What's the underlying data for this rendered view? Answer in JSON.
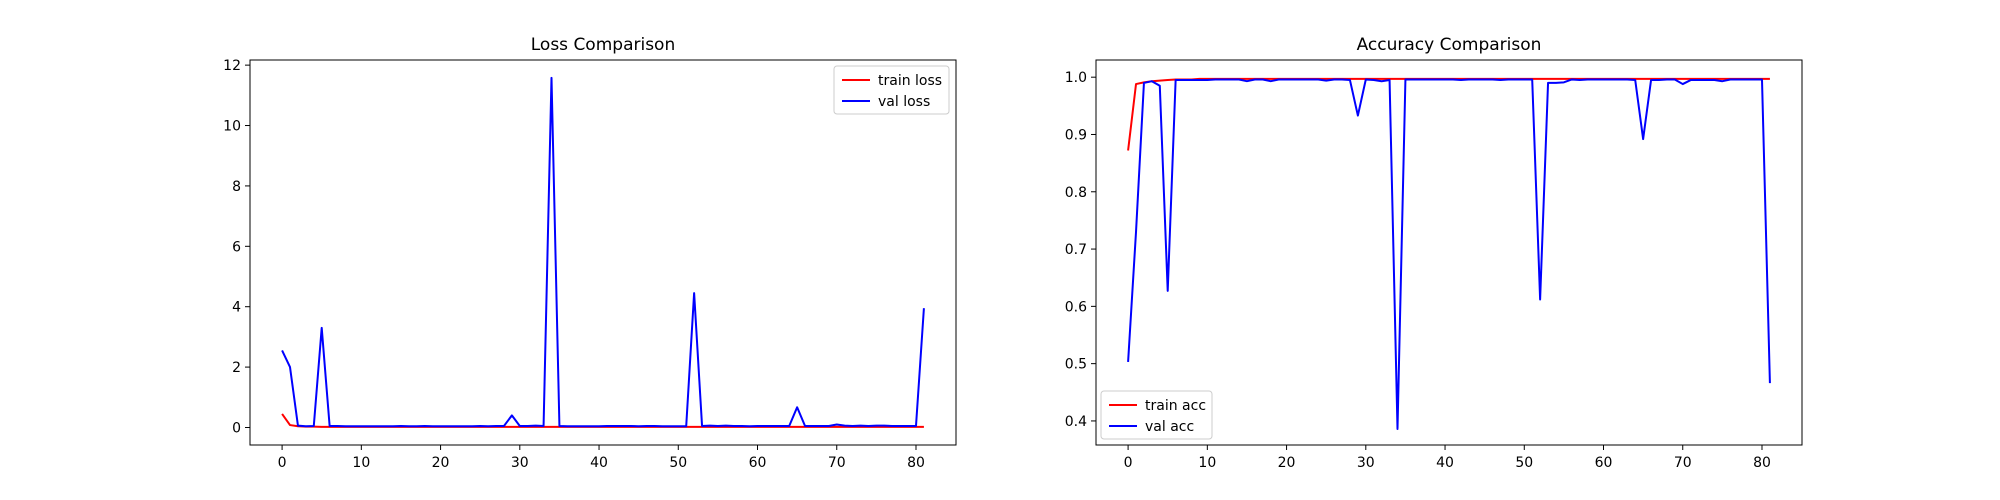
{
  "chart_data": [
    {
      "type": "line",
      "title": "Loss Comparison",
      "xlabel": "",
      "ylabel": "",
      "xlim": [
        -4.05,
        85.05
      ],
      "ylim": [
        -0.58,
        12.17
      ],
      "xticks": [
        0,
        10,
        20,
        30,
        40,
        50,
        60,
        70,
        80
      ],
      "yticks": [
        0,
        2,
        4,
        6,
        8,
        10,
        12
      ],
      "tick_decimals": 0,
      "legend_position": "top-right",
      "series": [
        {
          "name": "train loss",
          "color": "#ff0000",
          "values": [
            0.45,
            0.08,
            0.04,
            0.03,
            0.03,
            0.02,
            0.02,
            0.02,
            0.02,
            0.02,
            0.02,
            0.02,
            0.02,
            0.02,
            0.02,
            0.02,
            0.02,
            0.02,
            0.02,
            0.02,
            0.02,
            0.02,
            0.02,
            0.02,
            0.02,
            0.02,
            0.02,
            0.02,
            0.02,
            0.02,
            0.02,
            0.02,
            0.02,
            0.02,
            0.02,
            0.02,
            0.02,
            0.02,
            0.02,
            0.02,
            0.02,
            0.02,
            0.02,
            0.02,
            0.02,
            0.02,
            0.02,
            0.02,
            0.02,
            0.02,
            0.02,
            0.02,
            0.02,
            0.02,
            0.02,
            0.02,
            0.02,
            0.02,
            0.02,
            0.02,
            0.02,
            0.02,
            0.02,
            0.02,
            0.02,
            0.02,
            0.02,
            0.02,
            0.02,
            0.02,
            0.02,
            0.02,
            0.02,
            0.02,
            0.02,
            0.02,
            0.02,
            0.02,
            0.02,
            0.02,
            0.02,
            0.02
          ]
        },
        {
          "name": "val loss",
          "color": "#0000ff",
          "values": [
            2.55,
            2.0,
            0.06,
            0.04,
            0.05,
            3.3,
            0.05,
            0.05,
            0.04,
            0.04,
            0.04,
            0.04,
            0.04,
            0.04,
            0.04,
            0.05,
            0.04,
            0.04,
            0.05,
            0.04,
            0.04,
            0.04,
            0.04,
            0.04,
            0.04,
            0.05,
            0.04,
            0.05,
            0.05,
            0.4,
            0.05,
            0.05,
            0.06,
            0.05,
            11.58,
            0.05,
            0.04,
            0.04,
            0.04,
            0.04,
            0.04,
            0.05,
            0.05,
            0.05,
            0.05,
            0.04,
            0.05,
            0.05,
            0.04,
            0.04,
            0.04,
            0.04,
            4.45,
            0.05,
            0.06,
            0.05,
            0.06,
            0.05,
            0.05,
            0.04,
            0.05,
            0.05,
            0.05,
            0.05,
            0.05,
            0.67,
            0.05,
            0.05,
            0.05,
            0.05,
            0.1,
            0.06,
            0.05,
            0.06,
            0.05,
            0.06,
            0.06,
            0.05,
            0.05,
            0.05,
            0.05,
            3.95
          ]
        }
      ]
    },
    {
      "type": "line",
      "title": "Accuracy Comparison",
      "xlabel": "",
      "ylabel": "",
      "xlim": [
        -4.05,
        85.05
      ],
      "ylim": [
        0.358,
        1.03
      ],
      "xticks": [
        0,
        10,
        20,
        30,
        40,
        50,
        60,
        70,
        80
      ],
      "yticks": [
        0.4,
        0.5,
        0.6,
        0.7,
        0.8,
        0.9,
        1.0
      ],
      "tick_decimals": 1,
      "legend_position": "bottom-left",
      "series": [
        {
          "name": "train acc",
          "color": "#ff0000",
          "values": [
            0.872,
            0.988,
            0.991,
            0.993,
            0.994,
            0.995,
            0.996,
            0.996,
            0.996,
            0.997,
            0.997,
            0.997,
            0.997,
            0.997,
            0.997,
            0.997,
            0.997,
            0.997,
            0.997,
            0.997,
            0.997,
            0.997,
            0.997,
            0.997,
            0.997,
            0.997,
            0.997,
            0.997,
            0.997,
            0.997,
            0.997,
            0.997,
            0.997,
            0.997,
            0.997,
            0.997,
            0.997,
            0.997,
            0.997,
            0.997,
            0.997,
            0.997,
            0.997,
            0.997,
            0.997,
            0.997,
            0.997,
            0.997,
            0.997,
            0.997,
            0.997,
            0.997,
            0.997,
            0.997,
            0.997,
            0.997,
            0.997,
            0.997,
            0.997,
            0.997,
            0.997,
            0.997,
            0.997,
            0.997,
            0.997,
            0.997,
            0.997,
            0.997,
            0.997,
            0.997,
            0.997,
            0.997,
            0.997,
            0.997,
            0.997,
            0.997,
            0.997,
            0.997,
            0.997,
            0.997,
            0.997,
            0.997
          ]
        },
        {
          "name": "val acc",
          "color": "#0000ff",
          "values": [
            0.503,
            0.73,
            0.99,
            0.993,
            0.985,
            0.627,
            0.995,
            0.995,
            0.995,
            0.995,
            0.995,
            0.996,
            0.996,
            0.996,
            0.996,
            0.993,
            0.996,
            0.996,
            0.993,
            0.996,
            0.996,
            0.996,
            0.996,
            0.996,
            0.996,
            0.994,
            0.996,
            0.996,
            0.995,
            0.933,
            0.996,
            0.995,
            0.993,
            0.995,
            0.386,
            0.996,
            0.996,
            0.996,
            0.996,
            0.996,
            0.996,
            0.996,
            0.995,
            0.996,
            0.996,
            0.996,
            0.996,
            0.995,
            0.996,
            0.996,
            0.996,
            0.996,
            0.612,
            0.99,
            0.99,
            0.991,
            0.996,
            0.995,
            0.996,
            0.996,
            0.996,
            0.996,
            0.996,
            0.996,
            0.995,
            0.892,
            0.995,
            0.995,
            0.996,
            0.996,
            0.988,
            0.995,
            0.995,
            0.995,
            0.995,
            0.993,
            0.996,
            0.996,
            0.996,
            0.996,
            0.996,
            0.466
          ]
        }
      ]
    }
  ]
}
